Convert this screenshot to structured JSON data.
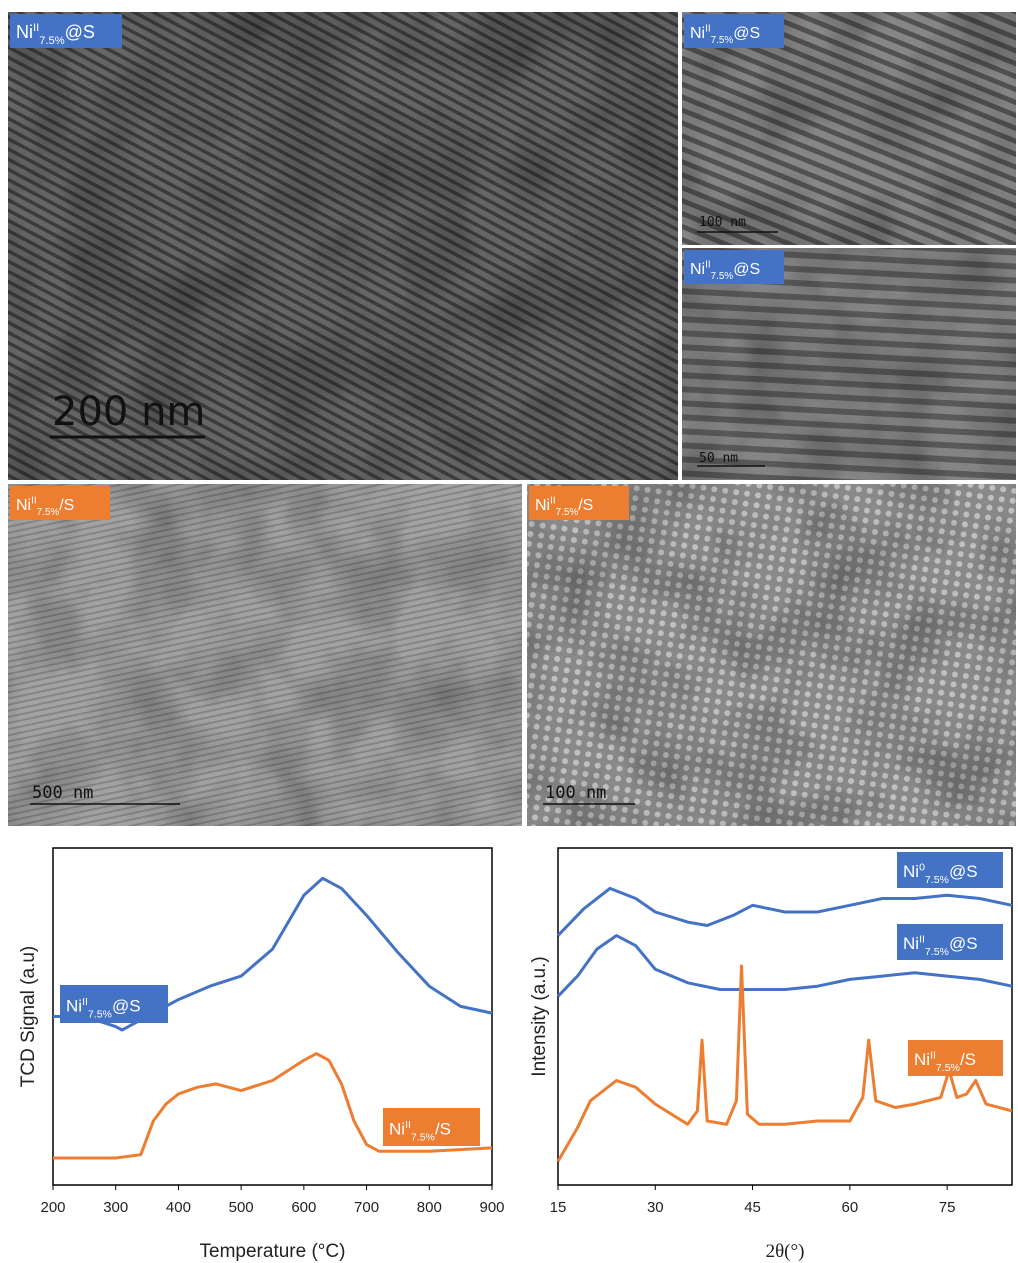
{
  "images": [
    {
      "label": {
        "element": "Ni",
        "sup": "II",
        "sub": "7.5%",
        "rest": "@S"
      },
      "label_color": "#4472c4",
      "scale_bar": "200 nm"
    },
    {
      "label": {
        "element": "Ni",
        "sup": "II",
        "sub": "7.5%",
        "rest": "@S"
      },
      "label_color": "#4472c4",
      "scale_bar": "100 nm"
    },
    {
      "label": {
        "element": "Ni",
        "sup": "II",
        "sub": "7.5%",
        "rest": "@S"
      },
      "label_color": "#4472c4",
      "scale_bar": "50 nm"
    },
    {
      "label": {
        "element": "Ni",
        "sup": "II",
        "sub": "7.5%",
        "rest": "/S"
      },
      "label_color": "#ed7d31",
      "scale_bar": "500 nm"
    },
    {
      "label": {
        "element": "Ni",
        "sup": "II",
        "sub": "7.5%",
        "rest": "/S"
      },
      "label_color": "#ed7d31",
      "scale_bar": "100 nm"
    }
  ],
  "chart_data": [
    {
      "type": "line",
      "x_label": "Temperature (°C)",
      "y_label": "TCD Signal (a.u)",
      "xlim": [
        200,
        900
      ],
      "xticks": [
        200,
        300,
        400,
        500,
        600,
        700,
        800,
        900
      ],
      "ylim": [
        0,
        100
      ],
      "series": [
        {
          "name": {
            "element": "Ni",
            "sup": "II",
            "sub": "7.5%",
            "rest": "@S"
          },
          "color": "#4472c4",
          "x": [
            200,
            250,
            300,
            310,
            350,
            400,
            450,
            500,
            550,
            600,
            630,
            660,
            700,
            750,
            800,
            850,
            900
          ],
          "values": [
            50,
            50,
            47,
            46,
            50,
            55,
            59,
            62,
            70,
            86,
            91,
            88,
            80,
            69,
            59,
            53,
            51
          ]
        },
        {
          "name": {
            "element": "Ni",
            "sup": "II",
            "sub": "7.5%",
            "rest": "/S"
          },
          "color": "#ed7d31",
          "x": [
            200,
            250,
            300,
            340,
            360,
            380,
            400,
            430,
            460,
            500,
            550,
            600,
            620,
            640,
            660,
            680,
            700,
            720,
            800,
            900
          ],
          "values": [
            8,
            8,
            8,
            9,
            19,
            24,
            27,
            29,
            30,
            28,
            31,
            37,
            39,
            37,
            30,
            19,
            12,
            10,
            10,
            11
          ]
        }
      ]
    },
    {
      "type": "line",
      "x_label": "2θ(°)",
      "y_label": "Intensity (a.u.)",
      "xlim": [
        15,
        85
      ],
      "xticks": [
        15,
        30,
        45,
        60,
        75
      ],
      "ylim": [
        0,
        100
      ],
      "series": [
        {
          "name": {
            "element": "Ni",
            "sup": "0",
            "sub": "7.5%",
            "rest": "@S"
          },
          "color": "#4472c4",
          "x": [
            15,
            19,
            23,
            27,
            30,
            35,
            38,
            42,
            45,
            50,
            55,
            60,
            65,
            70,
            75,
            80,
            85
          ],
          "values": [
            74,
            82,
            88,
            85,
            81,
            78,
            77,
            80,
            83,
            81,
            81,
            83,
            85,
            85,
            86,
            85,
            83
          ]
        },
        {
          "name": {
            "element": "Ni",
            "sup": "II",
            "sub": "7.5%",
            "rest": "@S"
          },
          "color": "#4472c4",
          "x": [
            15,
            18,
            21,
            24,
            27,
            30,
            35,
            40,
            45,
            50,
            55,
            60,
            65,
            70,
            75,
            80,
            85
          ],
          "values": [
            56,
            62,
            70,
            74,
            71,
            64,
            60,
            58,
            58,
            58,
            59,
            61,
            62,
            63,
            62,
            61,
            59
          ]
        },
        {
          "name": {
            "element": "Ni",
            "sup": "II",
            "sub": "7.5%",
            "rest": "/S"
          },
          "color": "#ed7d31",
          "x": [
            15,
            18,
            20,
            24,
            27,
            30,
            35,
            36.5,
            37.2,
            38,
            41,
            42.5,
            43.3,
            44.2,
            46,
            50,
            55,
            60,
            62,
            62.9,
            64,
            67,
            70,
            74,
            75.3,
            76.5,
            78,
            79.4,
            81,
            85
          ],
          "values": [
            7,
            17,
            25,
            31,
            29,
            24,
            18,
            22,
            43,
            19,
            18,
            25,
            65,
            21,
            18,
            18,
            19,
            19,
            26,
            43,
            25,
            23,
            24,
            26,
            34,
            26,
            27,
            31,
            24,
            22
          ]
        }
      ]
    }
  ]
}
